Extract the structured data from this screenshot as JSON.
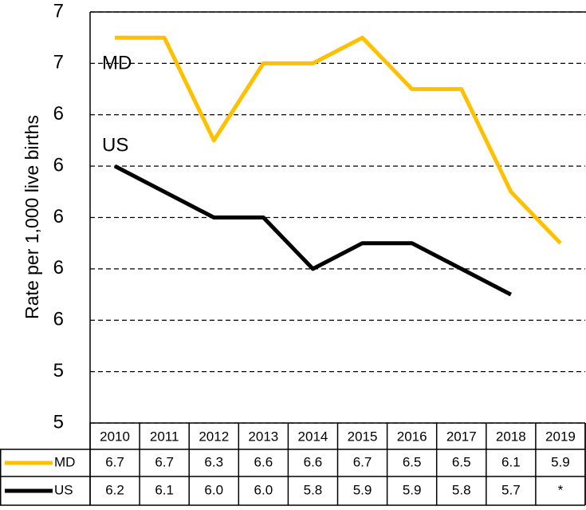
{
  "chart_data": {
    "type": "line",
    "y_label": "Rate per 1,000 live births",
    "categories": [
      "2010",
      "2011",
      "2012",
      "2013",
      "2014",
      "2015",
      "2016",
      "2017",
      "2018",
      "2019"
    ],
    "series": [
      {
        "name": "MD",
        "color": "#ffc000",
        "values": [
          6.7,
          6.7,
          6.3,
          6.6,
          6.6,
          6.7,
          6.5,
          6.5,
          6.1,
          5.9
        ],
        "value_labels": [
          "6.7",
          "6.7",
          "6.3",
          "6.6",
          "6.6",
          "6.7",
          "6.5",
          "6.5",
          "6.1",
          "5.9"
        ]
      },
      {
        "name": "US",
        "color": "#000000",
        "values": [
          6.2,
          6.1,
          6.0,
          6.0,
          5.8,
          5.9,
          5.9,
          5.8,
          5.7,
          null
        ],
        "value_labels": [
          "6.2",
          "6.1",
          "6.0",
          "6.0",
          "5.8",
          "5.9",
          "5.9",
          "5.8",
          "5.7",
          "*"
        ]
      }
    ],
    "ylim": [
      5.2,
      6.8
    ],
    "yticks": [
      {
        "value": 5.2,
        "label": "5"
      },
      {
        "value": 5.4,
        "label": "5"
      },
      {
        "value": 5.6,
        "label": "6"
      },
      {
        "value": 5.8,
        "label": "6"
      },
      {
        "value": 6.0,
        "label": "6"
      },
      {
        "value": 6.2,
        "label": "6"
      },
      {
        "value": 6.4,
        "label": "6"
      },
      {
        "value": 6.6,
        "label": "7"
      },
      {
        "value": 6.8,
        "label": "7"
      }
    ],
    "grid": true
  }
}
